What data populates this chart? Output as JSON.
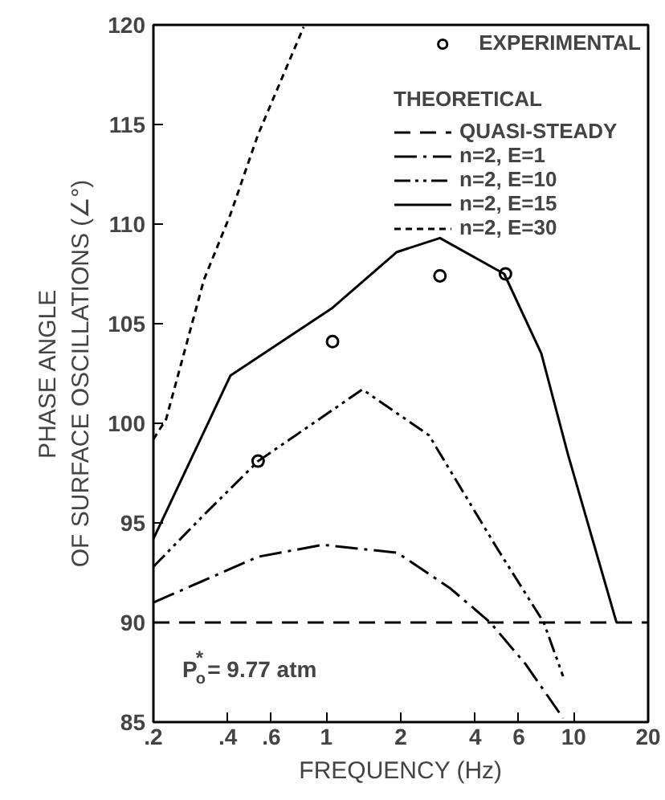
{
  "chart_data": {
    "type": "line",
    "xlabel": "FREQUENCY (Hz)",
    "ylabel": "PHASE ANGLE\nOF SURFACE OSCILLATIONS (∠°)",
    "legend_title": "THEORETICAL",
    "legend": "top right",
    "log": "x",
    "grid": false,
    "xlim": [
      0.2,
      20
    ],
    "ylim": [
      85,
      120
    ],
    "xticks": [
      {
        "value": 0.2,
        "label": ".2"
      },
      {
        "value": 0.4,
        "label": ".4"
      },
      {
        "value": 0.6,
        "label": ".6"
      },
      1,
      2,
      4,
      6,
      10,
      20
    ],
    "yticks": [
      85,
      90,
      95,
      100,
      105,
      110,
      115,
      120
    ],
    "series": [
      {
        "name": "EXPERIMENTAL",
        "type": "scatter",
        "marker": "circle",
        "color": "#000000",
        "x": [
          0.53,
          1.06,
          2.88,
          5.3
        ],
        "values": [
          98.1,
          104.1,
          107.4,
          107.5
        ]
      },
      {
        "name": "QUASI-STEADY",
        "color": "#000000",
        "line_style": "dashed",
        "x": [
          0.2,
          20
        ],
        "values": [
          90,
          90
        ]
      },
      {
        "name": "n=2, E=1",
        "color": "#000000",
        "line_style": "dashdot",
        "x": [
          0.2,
          0.53,
          0.97,
          1.94,
          3.18,
          4.6,
          6.4,
          9.06
        ],
        "values": [
          91.0,
          93.3,
          93.9,
          93.5,
          91.7,
          90.0,
          87.9,
          85.2
        ]
      },
      {
        "name": "n=2, E=10",
        "color": "#000000",
        "line_style": "dashdotdot",
        "x": [
          0.2,
          0.32,
          0.53,
          1.4,
          2.6,
          4.86,
          7.57,
          9.06
        ],
        "values": [
          92.8,
          95.4,
          98.1,
          101.7,
          99.4,
          93.8,
          90.0,
          87.3
        ]
      },
      {
        "name": "n=2, E=15",
        "color": "#000000",
        "line_style": "solid",
        "x": [
          0.2,
          0.41,
          1.06,
          1.93,
          2.88,
          5.24,
          7.4,
          9.5,
          14.9
        ],
        "values": [
          94.2,
          102.4,
          105.8,
          108.6,
          109.3,
          107.5,
          103.5,
          98.4,
          90.0
        ]
      },
      {
        "name": "n=2, E=30",
        "color": "#000000",
        "line_style": "dotted",
        "x": [
          0.2,
          0.225,
          0.32,
          0.41,
          0.53,
          0.81
        ],
        "values": [
          99.2,
          100.2,
          107.2,
          110.5,
          114.5,
          119.9
        ]
      }
    ],
    "annotations": [
      "P$_{o}$$^{*}$= 9.77 atm"
    ]
  }
}
